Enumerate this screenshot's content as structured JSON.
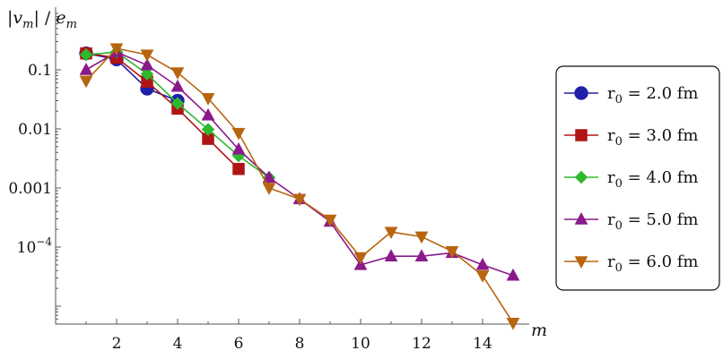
{
  "chart_data": {
    "type": "line",
    "ylabel": "|v_m| / e_m",
    "xlabel": "m",
    "yscale": "log",
    "xlim": [
      0,
      15
    ],
    "ylim": [
      5e-06,
      0.3
    ],
    "x_ticks": [
      2,
      4,
      6,
      8,
      10,
      12,
      14
    ],
    "y_ticks": [
      {
        "value": 0.1,
        "label": "0.1"
      },
      {
        "value": 0.01,
        "label": "0.01"
      },
      {
        "value": 0.001,
        "label": "0.001"
      },
      {
        "value": 0.0001,
        "label": "10",
        "sup": "−4"
      }
    ],
    "legend_position": "right",
    "series": [
      {
        "name": "r0 = 2.0 fm",
        "color": "#1f1fa8",
        "marker": "circle",
        "x": [
          1,
          2,
          3,
          4
        ],
        "y": [
          0.19,
          0.15,
          0.048,
          0.03
        ]
      },
      {
        "name": "r0 = 3.0 fm",
        "color": "#b01515",
        "marker": "square",
        "x": [
          1,
          2,
          3,
          4,
          5,
          6
        ],
        "y": [
          0.19,
          0.16,
          0.063,
          0.022,
          0.0068,
          0.0021
        ]
      },
      {
        "name": "r0 = 4.0 fm",
        "color": "#2eb82e",
        "marker": "diamond",
        "x": [
          1,
          2,
          3,
          4,
          5,
          6,
          7
        ],
        "y": [
          0.18,
          0.2,
          0.085,
          0.027,
          0.0098,
          0.0035,
          0.0015
        ]
      },
      {
        "name": "r0 = 5.0 fm",
        "color": "#8a1a8a",
        "marker": "triangle-up",
        "x": [
          1,
          2,
          3,
          4,
          5,
          6,
          7,
          8,
          9,
          10,
          11,
          12,
          13,
          14,
          15
        ],
        "y": [
          0.1,
          0.2,
          0.12,
          0.052,
          0.017,
          0.0045,
          0.0015,
          0.00065,
          0.00027,
          5e-05,
          7e-05,
          7e-05,
          8e-05,
          5e-05,
          3.3e-05
        ]
      },
      {
        "name": "r0 = 6.0 fm",
        "color": "#b8650f",
        "marker": "triangle-down",
        "x": [
          1,
          2,
          3,
          4,
          5,
          6,
          7,
          8,
          9,
          10,
          11,
          12,
          13,
          14,
          15
        ],
        "y": [
          0.065,
          0.23,
          0.18,
          0.09,
          0.033,
          0.0085,
          0.001,
          0.00065,
          0.00029,
          6.7e-05,
          0.00018,
          0.00015,
          8.5e-05,
          3.3e-05,
          5.2e-06
        ]
      }
    ],
    "legend": [
      {
        "prefix": "r",
        "sub": "0",
        "suffix": " = 2.0  fm"
      },
      {
        "prefix": "r",
        "sub": "0",
        "suffix": " = 3.0  fm"
      },
      {
        "prefix": "r",
        "sub": "0",
        "suffix": " = 4.0  fm"
      },
      {
        "prefix": "r",
        "sub": "0",
        "suffix": " = 5.0  fm"
      },
      {
        "prefix": "r",
        "sub": "0",
        "suffix": " = 6.0  fm"
      }
    ]
  }
}
